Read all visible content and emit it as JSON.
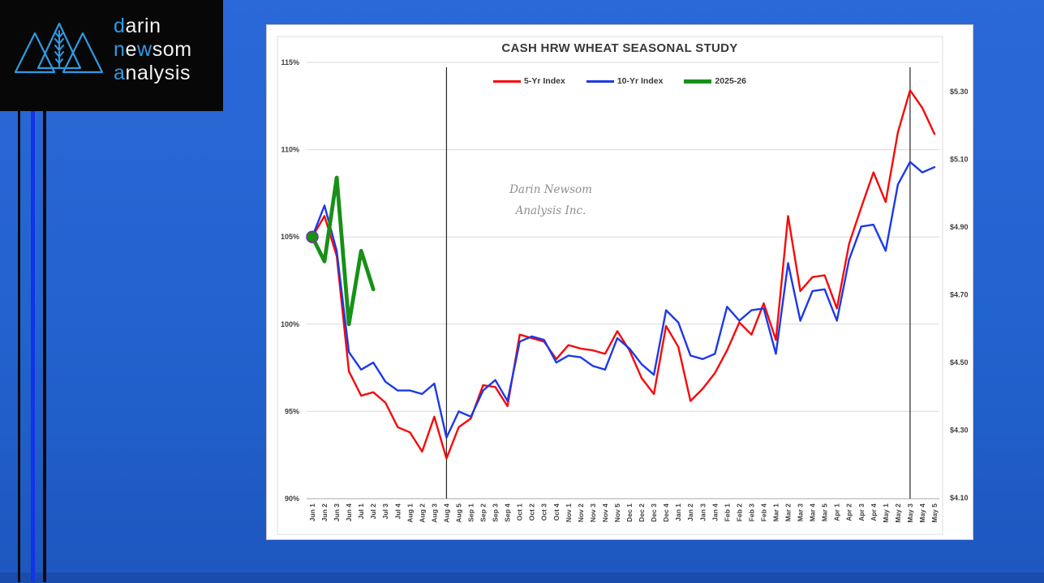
{
  "logo": {
    "accent_color": "#2f9ae4",
    "lines": [
      [
        {
          "t": "d",
          "c": "accent"
        },
        {
          "t": "arin",
          "c": "plain"
        }
      ],
      [
        {
          "t": "n",
          "c": "accent"
        },
        {
          "t": "e",
          "c": "plain"
        },
        {
          "t": "w",
          "c": "accent"
        },
        {
          "t": "som",
          "c": "plain"
        }
      ],
      [
        {
          "t": "a",
          "c": "accent"
        },
        {
          "t": "nalysis",
          "c": "plain"
        }
      ]
    ]
  },
  "chart_data": {
    "type": "line",
    "title": "CASH HRW WHEAT SEASONAL STUDY",
    "watermark": [
      "Darin Newsom",
      "Analysis Inc."
    ],
    "legend_position": "top",
    "grid": true,
    "categories": [
      "Jun 1",
      "Jun 2",
      "Jun 3",
      "Jun 4",
      "Jul 1",
      "Jul 2",
      "Jul 3",
      "Jul 4",
      "Aug 1",
      "Aug 2",
      "Aug 3",
      "Aug 4",
      "Aug 5",
      "Sep 1",
      "Sep 2",
      "Sep 3",
      "Sep 4",
      "Oct 1",
      "Oct 2",
      "Oct 3",
      "Oct 4",
      "Nov 1",
      "Nov 2",
      "Nov 3",
      "Nov 4",
      "Nov 5",
      "Dec 1",
      "Dec 2",
      "Dec 3",
      "Dec 4",
      "Jan 1",
      "Jan 2",
      "Jan 3",
      "Jan 4",
      "Feb 1",
      "Feb 2",
      "Feb 3",
      "Feb 4",
      "Mar 1",
      "Mar 2",
      "Mar 3",
      "Mar 4",
      "Mar 5",
      "Apr 1",
      "Apr 2",
      "Apr 3",
      "Apr 4",
      "May 1",
      "May 2",
      "May 3",
      "May 4",
      "May 5"
    ],
    "series": [
      {
        "name": "5-Yr Index",
        "color": "#f60909",
        "width": 2.4,
        "values": [
          105.0,
          106.2,
          103.9,
          97.3,
          95.9,
          96.1,
          95.5,
          94.1,
          93.8,
          92.7,
          94.7,
          92.3,
          94.1,
          94.6,
          96.5,
          96.4,
          95.3,
          99.4,
          99.2,
          99.0,
          98.0,
          98.8,
          98.6,
          98.5,
          98.3,
          99.6,
          98.5,
          96.9,
          96.0,
          99.9,
          98.7,
          95.6,
          96.3,
          97.2,
          98.5,
          100.1,
          99.4,
          101.2,
          99.1,
          106.2,
          101.9,
          102.7,
          102.8,
          100.9,
          104.6,
          106.7,
          108.7,
          107.0,
          111.0,
          113.4,
          112.4,
          110.9
        ]
      },
      {
        "name": "10-Yr Index",
        "color": "#1c39e8",
        "width": 2.4,
        "values": [
          105.0,
          106.8,
          104.2,
          98.4,
          97.4,
          97.8,
          96.7,
          96.2,
          96.2,
          96.0,
          96.6,
          93.5,
          95.0,
          94.7,
          96.2,
          96.8,
          95.6,
          99.0,
          99.3,
          99.1,
          97.8,
          98.2,
          98.1,
          97.6,
          97.4,
          99.2,
          98.6,
          97.7,
          97.1,
          100.8,
          100.1,
          98.2,
          98.0,
          98.3,
          101.0,
          100.2,
          100.8,
          100.9,
          98.3,
          103.5,
          100.2,
          101.9,
          102.0,
          100.2,
          103.7,
          105.6,
          105.7,
          104.2,
          108.0,
          109.3,
          108.7,
          109.0
        ]
      },
      {
        "name": "2025-26",
        "color": "#189018",
        "width": 4.8,
        "values": [
          105.0,
          103.6,
          108.4,
          100.0,
          104.2,
          102.0,
          null,
          null,
          null,
          null,
          null,
          null,
          null,
          null,
          null,
          null,
          null,
          null,
          null,
          null,
          null,
          null,
          null,
          null,
          null,
          null,
          null,
          null,
          null,
          null,
          null,
          null,
          null,
          null,
          null,
          null,
          null,
          null,
          null,
          null,
          null,
          null,
          null,
          null,
          null,
          null,
          null,
          null,
          null,
          null,
          null,
          null
        ],
        "marker": {
          "index": 0,
          "radius": 7,
          "stroke": "#7030a0"
        }
      }
    ],
    "left_axis": {
      "min": 90,
      "max": 115,
      "step": 5,
      "ticks": [
        "115%",
        "110%",
        "105%",
        "100%",
        "95%",
        "90%"
      ]
    },
    "right_axis": {
      "ticks": [
        "$5.30",
        "$5.10",
        "$4.90",
        "$4.70",
        "$4.50",
        "$4.30",
        "$4.10"
      ]
    },
    "vertical_markers": [
      "Aug 4",
      "May 3"
    ]
  }
}
